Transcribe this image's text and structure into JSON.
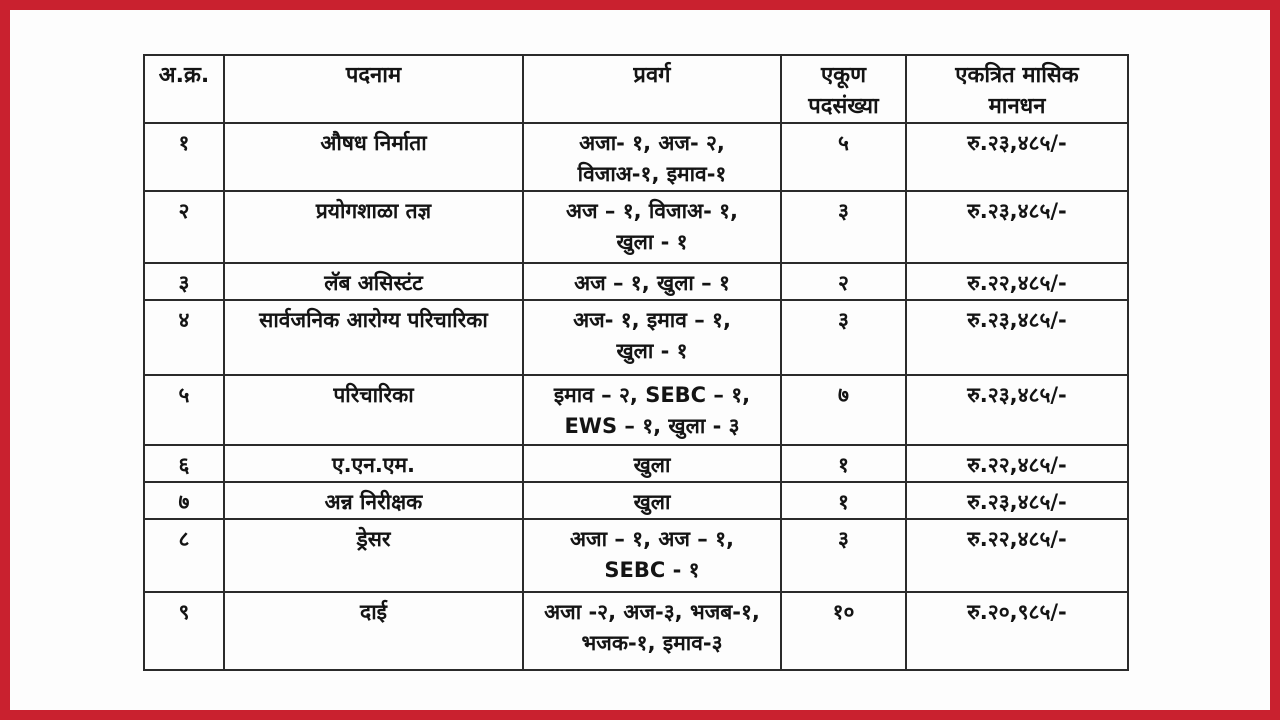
{
  "page": {
    "frame_color": "#C9212F",
    "background_color": "#ffffff"
  },
  "table": {
    "headers": [
      {
        "line1": "अ.क्र."
      },
      {
        "line1": "पदनाम"
      },
      {
        "line1": "प्रवर्ग"
      },
      {
        "line1": "एकूण",
        "line2": "पदसंख्या"
      },
      {
        "line1": "एकत्रित मासिक",
        "line2": "मानधन"
      }
    ],
    "rows": [
      {
        "sr": "१",
        "post": "औषध निर्माता",
        "category_line1": "अजा- १, अज- २,",
        "category_line2": "विजाअ-१, इमाव-१",
        "total": "५",
        "salary": "रु.२३,४८५/-"
      },
      {
        "sr": "२",
        "post": "प्रयोगशाळा तज्ञ",
        "category_line1": "अज – १, विजाअ- १,",
        "category_line2": "खुला - १",
        "total": "३",
        "salary": "रु.२३,४८५/-"
      },
      {
        "sr": "३",
        "post": "लॅब असिस्टंट",
        "category_line1": "अज – १, खुला – १",
        "category_line2": "",
        "total": "२",
        "salary": "रु.२२,४८५/-"
      },
      {
        "sr": "४",
        "post": "सार्वजनिक आरोग्य परिचारिका",
        "category_line1": "अज- १, इमाव – १,",
        "category_line2": "खुला - १",
        "total": "३",
        "salary": "रु.२३,४८५/-"
      },
      {
        "sr": "५",
        "post": "परिचारिका",
        "category_line1": "इमाव – २, SEBC – १,",
        "category_line2": "EWS – १, खुला - ३",
        "total": "७",
        "salary": "रु.२३,४८५/-"
      },
      {
        "sr": "६",
        "post": "ए.एन.एम.",
        "category_line1": "खुला",
        "category_line2": "",
        "total": "१",
        "salary": "रु.२२,४८५/-"
      },
      {
        "sr": "७",
        "post": "अन्न निरीक्षक",
        "category_line1": "खुला",
        "category_line2": "",
        "total": "१",
        "salary": "रु.२३,४८५/-"
      },
      {
        "sr": "८",
        "post": "ड्रेसर",
        "category_line1": "अजा – १, अज – १,",
        "category_line2": "SEBC - १",
        "total": "३",
        "salary": "रु.२२,४८५/-"
      },
      {
        "sr": "९",
        "post": "दाई",
        "category_line1": "अजा -२, अज-३, भजब-१,",
        "category_line2": "भजक-१, इमाव-३",
        "total": "१०",
        "salary": "रु.२०,९८५/-"
      }
    ]
  }
}
